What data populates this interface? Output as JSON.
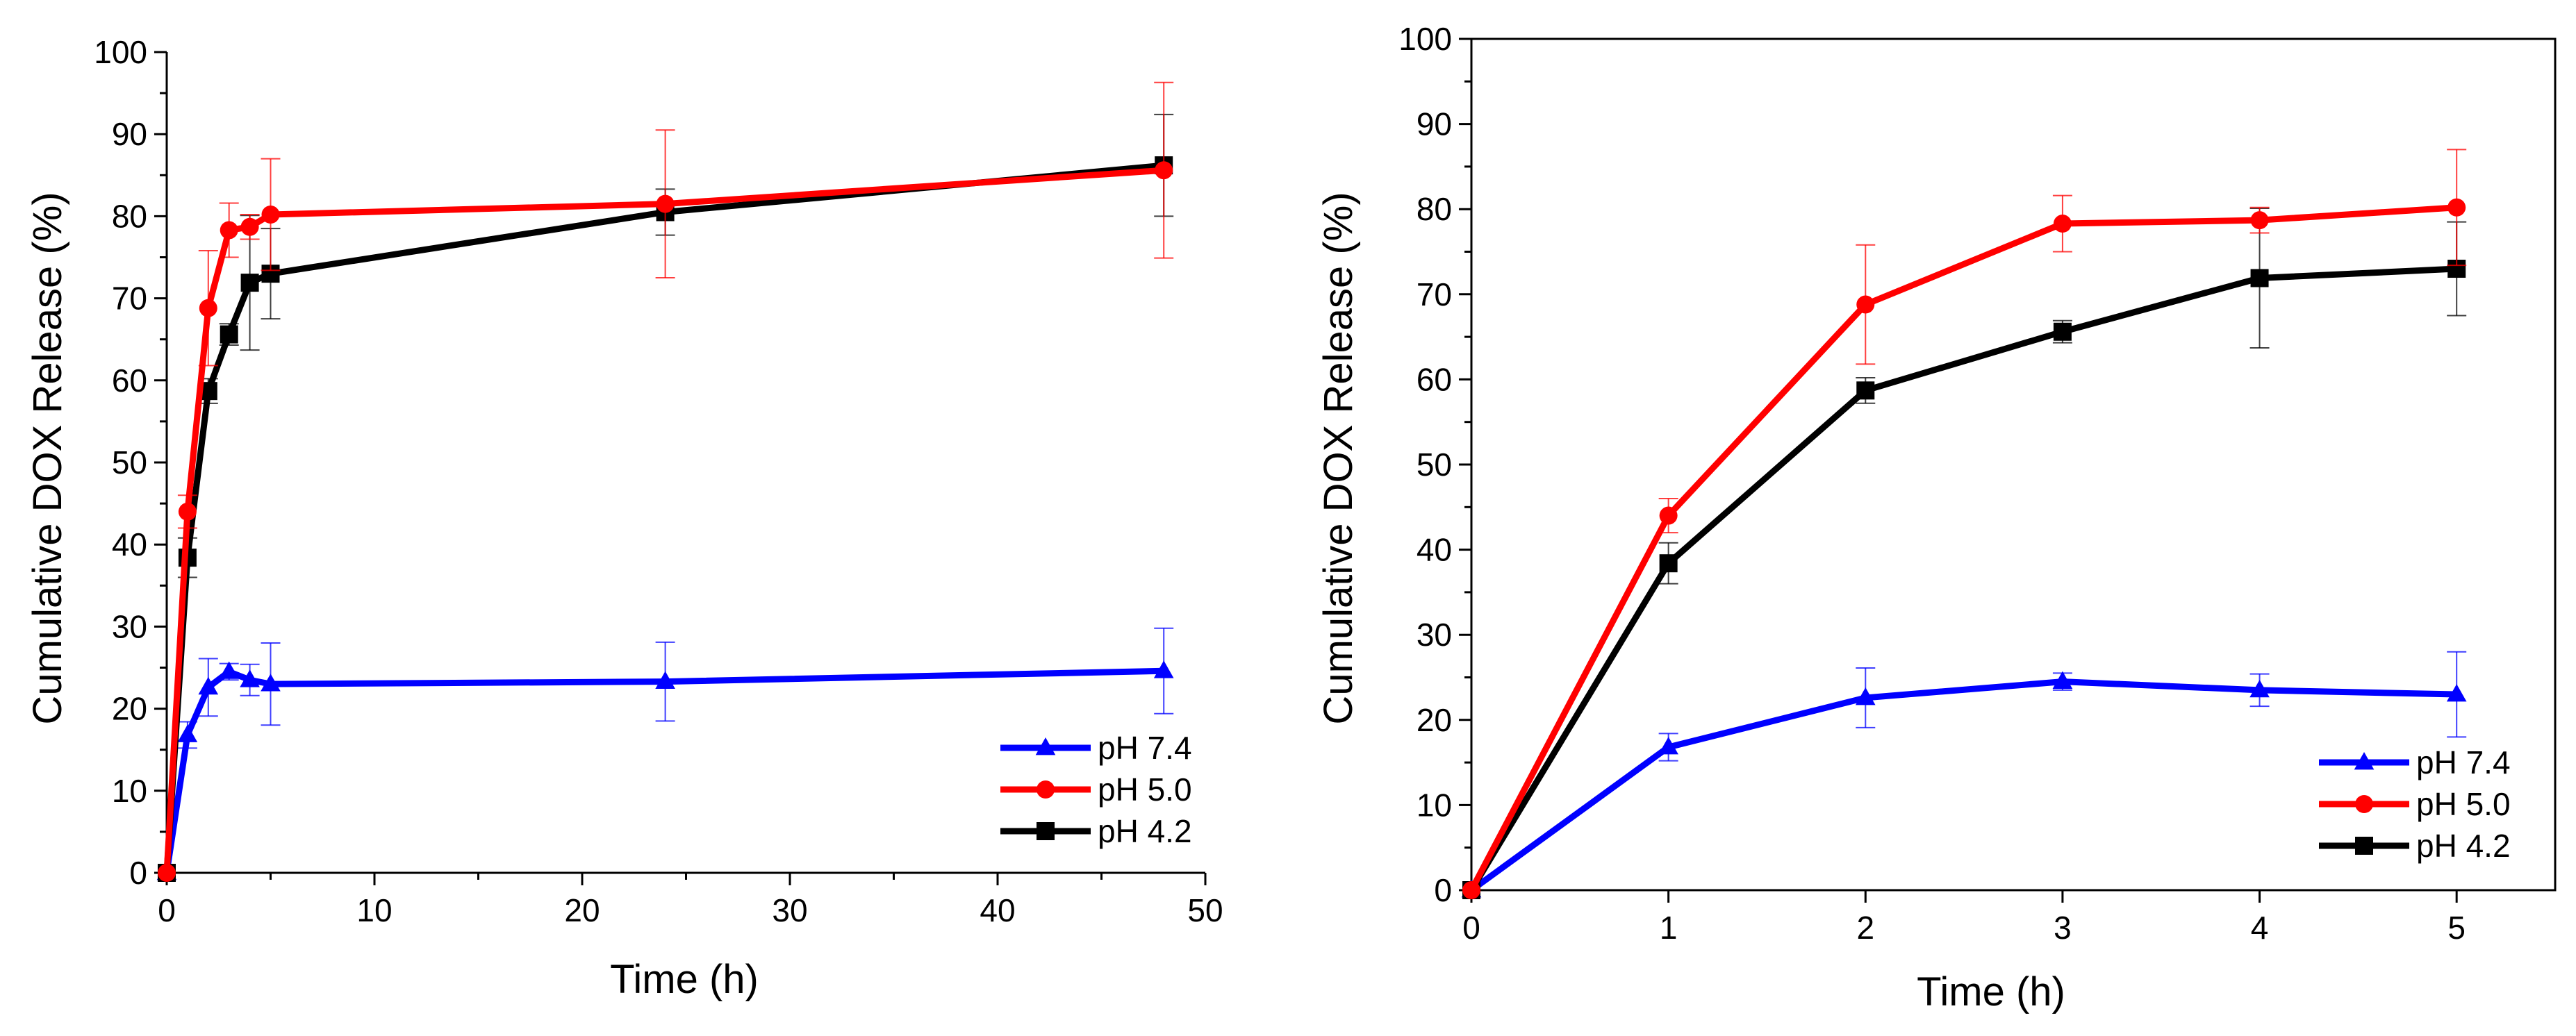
{
  "charts": [
    {
      "chart_data": {
        "type": "line",
        "title": "",
        "xlabel": "Time (h)",
        "ylabel": "Cumulative DOX Release (%)",
        "xlim": [
          0,
          50
        ],
        "ylim": [
          0,
          100
        ],
        "xticks": [
          0,
          10,
          20,
          30,
          40,
          50
        ],
        "yticks": [
          0,
          10,
          20,
          30,
          40,
          50,
          60,
          70,
          80,
          90,
          100
        ],
        "legend_position": "bottom-right",
        "grid": false,
        "series": [
          {
            "name": "pH 7.4",
            "color": "#0000ff",
            "marker": "triangle",
            "x": [
              0,
              1,
              2,
              3,
              4,
              5,
              24,
              48
            ],
            "y": [
              0,
              16.8,
              22.6,
              24.5,
              23.5,
              23.0,
              23.3,
              24.6
            ],
            "err": [
              0,
              1.6,
              3.5,
              1.0,
              1.9,
              5.0,
              4.8,
              5.2
            ]
          },
          {
            "name": "pH 5.0",
            "color": "#ff0000",
            "marker": "circle",
            "x": [
              0,
              1,
              2,
              3,
              4,
              5,
              24,
              48
            ],
            "y": [
              0,
              44.0,
              68.8,
              78.3,
              78.7,
              80.2,
              81.5,
              85.6
            ],
            "err": [
              0,
              2.0,
              7.0,
              3.3,
              1.5,
              6.8,
              9.0,
              10.7
            ]
          },
          {
            "name": "pH 4.2",
            "color": "#000000",
            "marker": "square",
            "x": [
              0,
              1,
              2,
              3,
              4,
              5,
              24,
              48
            ],
            "y": [
              0,
              38.4,
              58.7,
              65.6,
              71.9,
              73.0,
              80.5,
              86.2
            ],
            "err": [
              0,
              2.4,
              1.5,
              1.3,
              8.2,
              5.5,
              2.8,
              6.2
            ]
          }
        ]
      }
    },
    {
      "chart_data": {
        "type": "line",
        "title": "",
        "xlabel": "Time (h)",
        "ylabel": "Cumulative DOX Release (%)",
        "xlim": [
          0,
          5.5
        ],
        "ylim": [
          0,
          100
        ],
        "xticks": [
          0,
          1,
          2,
          3,
          4,
          5
        ],
        "yticks": [
          0,
          10,
          20,
          30,
          40,
          50,
          60,
          70,
          80,
          90,
          100
        ],
        "legend_position": "bottom-right",
        "grid": false,
        "series": [
          {
            "name": "pH 7.4",
            "color": "#0000ff",
            "marker": "triangle",
            "x": [
              0,
              1,
              2,
              3,
              4,
              5
            ],
            "y": [
              0,
              16.8,
              22.6,
              24.5,
              23.5,
              23.0
            ],
            "err": [
              0,
              1.6,
              3.5,
              1.0,
              1.9,
              5.0
            ]
          },
          {
            "name": "pH 5.0",
            "color": "#ff0000",
            "marker": "circle",
            "x": [
              0,
              1,
              2,
              3,
              4,
              5
            ],
            "y": [
              0,
              44.0,
              68.8,
              78.3,
              78.7,
              80.2
            ],
            "err": [
              0,
              2.0,
              7.0,
              3.3,
              1.5,
              6.8
            ]
          },
          {
            "name": "pH 4.2",
            "color": "#000000",
            "marker": "square",
            "x": [
              0,
              1,
              2,
              3,
              4,
              5
            ],
            "y": [
              0,
              38.4,
              58.7,
              65.6,
              71.9,
              73.0
            ],
            "err": [
              0,
              2.4,
              1.5,
              1.3,
              8.2,
              5.5
            ]
          }
        ]
      }
    }
  ]
}
